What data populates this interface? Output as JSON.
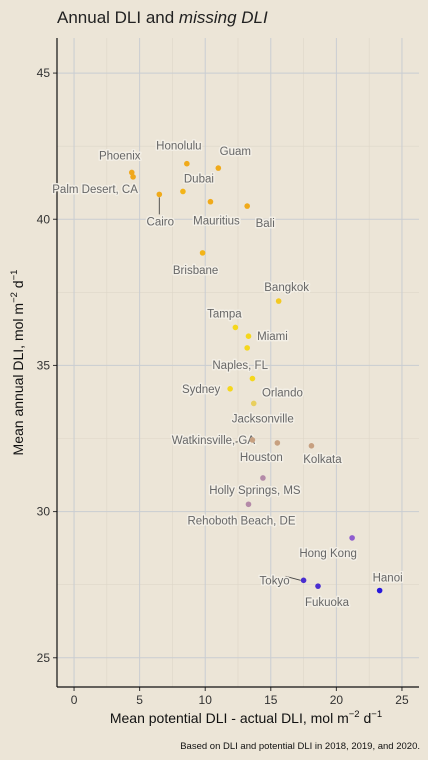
{
  "chart_data": {
    "type": "scatter",
    "title_main": "Annual DLI and ",
    "title_italic": "missing DLI",
    "xlabel_main": "Mean potential DLI - actual DLI, mol m",
    "xlabel_sup": "−2",
    "xlabel_end": " d",
    "xlabel_end_sup": "−1",
    "ylabel_main": "Mean annual DLI, mol m",
    "ylabel_sup": "−2",
    "ylabel_end": " d",
    "ylabel_end_sup": "−1",
    "caption": "Based on DLI and potential DLI in 2018, 2019, and 2020.",
    "xlim": [
      -1.3,
      26.3
    ],
    "ylim": [
      24,
      46.2
    ],
    "x_ticks": [
      "0",
      "5",
      "10",
      "15",
      "20",
      "25"
    ],
    "y_ticks": [
      "25",
      "30",
      "35",
      "40",
      "45"
    ],
    "grid": true,
    "points": [
      {
        "label": "Phoenix",
        "x": 4.4,
        "y": 41.6,
        "color": "#f0a81c"
      },
      {
        "label": "Palm Desert, CA",
        "x": 4.5,
        "y": 41.45,
        "color": "#f0a81c"
      },
      {
        "label": "Honolulu",
        "x": 8.6,
        "y": 41.9,
        "color": "#f0aa1a"
      },
      {
        "label": "Guam",
        "x": 11.0,
        "y": 41.75,
        "color": "#f0aa1a"
      },
      {
        "label": "Dubai",
        "x": 8.3,
        "y": 40.95,
        "color": "#f3b418"
      },
      {
        "label": "Cairo",
        "x": 6.5,
        "y": 40.85,
        "color": "#f0aa1a"
      },
      {
        "label": "Mauritius",
        "x": 10.4,
        "y": 40.6,
        "color": "#f0aa1a"
      },
      {
        "label": "Bali",
        "x": 13.2,
        "y": 40.45,
        "color": "#f0aa1a"
      },
      {
        "label": "Brisbane",
        "x": 9.8,
        "y": 38.85,
        "color": "#f3b418"
      },
      {
        "label": "Bangkok",
        "x": 15.6,
        "y": 37.2,
        "color": "#f3c922"
      },
      {
        "label": "Tampa",
        "x": 12.3,
        "y": 36.3,
        "color": "#f5d71c"
      },
      {
        "label": "Miami",
        "x": 13.3,
        "y": 36.0,
        "color": "#f5d71c"
      },
      {
        "label": "Naples, FL",
        "x": 13.2,
        "y": 35.6,
        "color": "#f5d71c"
      },
      {
        "label": "Sydney",
        "x": 11.9,
        "y": 34.2,
        "color": "#f5d71c"
      },
      {
        "label": "Orlando",
        "x": 13.6,
        "y": 34.55,
        "color": "#f5d71c"
      },
      {
        "label": "Jacksonville",
        "x": 13.7,
        "y": 33.7,
        "color": "#e8cf5e"
      },
      {
        "label": "Watkinsville, GA",
        "x": 13.6,
        "y": 32.45,
        "color": "#c7a080"
      },
      {
        "label": "Houston",
        "x": 15.5,
        "y": 32.35,
        "color": "#c7a080"
      },
      {
        "label": "Kolkata",
        "x": 18.1,
        "y": 32.25,
        "color": "#c7a080"
      },
      {
        "label": "Holly Springs, MS",
        "x": 14.4,
        "y": 31.15,
        "color": "#b48aa8"
      },
      {
        "label": "Rehoboth Beach, DE",
        "x": 13.3,
        "y": 30.25,
        "color": "#b48aa8"
      },
      {
        "label": "Hong Kong",
        "x": 21.2,
        "y": 29.1,
        "color": "#8f5ccf"
      },
      {
        "label": "Tokyo",
        "x": 17.5,
        "y": 27.65,
        "color": "#4a2ed0"
      },
      {
        "label": "Fukuoka",
        "x": 18.6,
        "y": 27.45,
        "color": "#4a2ed0"
      },
      {
        "label": "Hanoi",
        "x": 23.3,
        "y": 27.3,
        "color": "#2718dc"
      }
    ]
  }
}
